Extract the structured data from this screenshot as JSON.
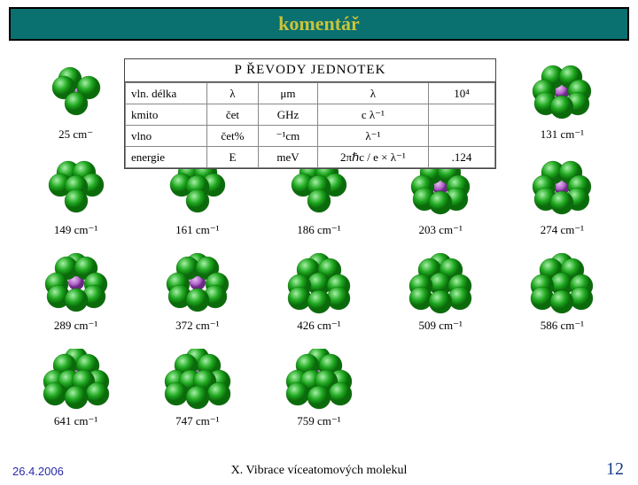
{
  "title": {
    "text": "komentář",
    "bg_color": "#0a7070",
    "text_color": "#c9c43a"
  },
  "sphere_colors": {
    "outer": "#1fa81f",
    "outer_dark": "#0b6b0b",
    "inner": "#b060c8",
    "inner_dark": "#6a2a82"
  },
  "molecules": {
    "row1": [
      {
        "label": "25 cm⁻",
        "n": 4
      },
      {
        "label": "",
        "n": 0
      },
      {
        "label": "",
        "n": 0
      },
      {
        "label": "",
        "n": 0
      },
      {
        "label": "131 cm⁻¹",
        "n": 7
      }
    ],
    "row2": [
      {
        "label": "149 cm⁻¹",
        "n": 6
      },
      {
        "label": "161 cm⁻¹",
        "n": 6
      },
      {
        "label": "186 cm⁻¹",
        "n": 6
      },
      {
        "label": "203 cm⁻¹",
        "n": 7
      },
      {
        "label": "274 cm⁻¹",
        "n": 7
      }
    ],
    "row3": [
      {
        "label": "289 cm⁻¹",
        "n": 8
      },
      {
        "label": "372 cm⁻¹",
        "n": 8
      },
      {
        "label": "426 cm⁻¹",
        "n": 9
      },
      {
        "label": "509 cm⁻¹",
        "n": 9
      },
      {
        "label": "586 cm⁻¹",
        "n": 9
      }
    ],
    "row4": [
      {
        "label": "641 cm⁻¹",
        "n": 10
      },
      {
        "label": "747 cm⁻¹",
        "n": 10
      },
      {
        "label": "759 cm⁻¹",
        "n": 10
      }
    ]
  },
  "table": {
    "header": "P  ŘEVODY JEDNOTEK",
    "rows": [
      [
        "vln. délka",
        "λ",
        "μm",
        "λ",
        "10⁴"
      ],
      [
        "kmito",
        "čet",
        "GHz",
        "c λ⁻¹",
        ""
      ],
      [
        "vlno",
        "čet%",
        "⁻¹cm",
        "λ⁻¹",
        ""
      ],
      [
        "energie",
        "E",
        "meV",
        "2πℏc / e × λ⁻¹",
        ".124"
      ]
    ]
  },
  "footer": {
    "date": "26.4.2006",
    "caption": "X. Vibrace víceatomových molekul",
    "page": "12"
  }
}
